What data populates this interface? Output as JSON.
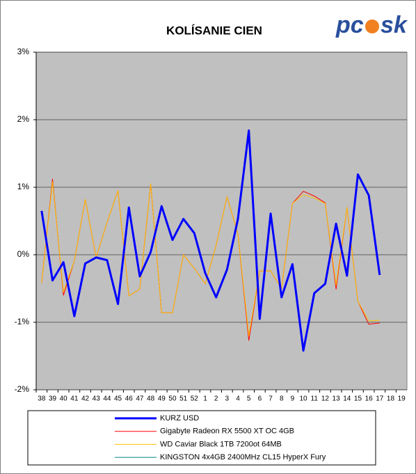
{
  "chart_data": {
    "type": "line",
    "title": "KOLÍSANIE CIEN",
    "logo": [
      "pc",
      "sk"
    ],
    "categories": [
      "38",
      "39",
      "40",
      "41",
      "42",
      "43",
      "44",
      "45",
      "46",
      "47",
      "48",
      "49",
      "50",
      "51",
      "52",
      "1",
      "2",
      "3",
      "4",
      "5",
      "6",
      "7",
      "8",
      "9",
      "10",
      "11",
      "12",
      "13",
      "14",
      "15",
      "16",
      "17",
      "18",
      "19"
    ],
    "series": [
      {
        "name": "KURZ USD",
        "color": "#0000ff",
        "width": 3,
        "values": [
          0.65,
          -0.38,
          -0.11,
          -0.91,
          -0.13,
          -0.04,
          -0.08,
          -0.73,
          0.7,
          -0.32,
          0.04,
          0.72,
          0.22,
          0.53,
          0.32,
          -0.27,
          -0.63,
          -0.22,
          0.53,
          1.84,
          -0.95,
          0.61,
          -0.63,
          -0.14,
          -1.42,
          -0.57,
          -0.43,
          0.46,
          -0.31,
          1.19,
          0.88,
          -0.3,
          null,
          null
        ]
      },
      {
        "name": "Gigabyte Radeon RX 5500 XT OC 4GB",
        "color": "#ff0000",
        "width": 1,
        "values": [
          -0.42,
          1.12,
          -0.6,
          -0.09,
          0.82,
          -0.04,
          0.48,
          0.95,
          -0.61,
          -0.51,
          1.05,
          -0.86,
          -0.86,
          0.0,
          -0.2,
          -0.43,
          0.14,
          0.86,
          0.31,
          -1.27,
          -0.24,
          -0.24,
          -0.5,
          0.76,
          0.94,
          0.87,
          0.77,
          -0.51,
          0.7,
          -0.69,
          -1.03,
          -1.01,
          null,
          null
        ]
      },
      {
        "name": "WD Caviar Black 1TB 7200ot 64MB",
        "color": "#ffc000",
        "width": 1,
        "values": [
          -0.42,
          1.08,
          -0.55,
          -0.09,
          0.82,
          -0.04,
          0.48,
          0.95,
          -0.61,
          -0.51,
          1.05,
          -0.86,
          -0.86,
          0.0,
          -0.2,
          -0.43,
          0.14,
          0.86,
          0.31,
          -1.2,
          -0.24,
          -0.24,
          -0.5,
          0.76,
          0.89,
          0.84,
          0.76,
          -0.45,
          0.7,
          -0.69,
          -0.98,
          -0.97,
          null,
          null
        ]
      },
      {
        "name": "KINGSTON 4x4GB 2400MHz CL15 HyperX Fury",
        "color": "#008080",
        "width": 1,
        "values": [
          null,
          null,
          null,
          null,
          null,
          null,
          null,
          null,
          null,
          null,
          null,
          null,
          null,
          null,
          null,
          null,
          null,
          null,
          null,
          null,
          null,
          null,
          null,
          null,
          null,
          null,
          null,
          null,
          null,
          null,
          null,
          null,
          null,
          null
        ]
      }
    ],
    "ylim": [
      -2,
      3
    ],
    "yticks": [
      {
        "value": -2,
        "label": "-2%"
      },
      {
        "value": -1,
        "label": "-1%"
      },
      {
        "value": 0,
        "label": "0%"
      },
      {
        "value": 1,
        "label": "1%"
      },
      {
        "value": 2,
        "label": "2%"
      },
      {
        "value": 3,
        "label": "3%"
      }
    ],
    "grid": true,
    "legend": "bottom"
  }
}
